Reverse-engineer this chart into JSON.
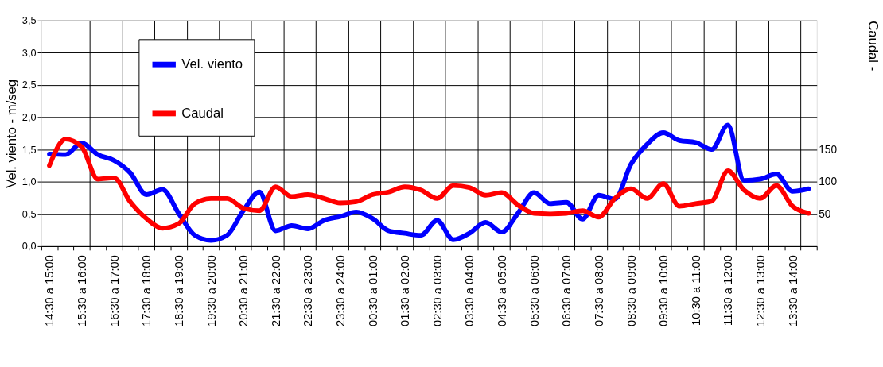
{
  "chart_data": {
    "type": "line",
    "categories": [
      "14:30 a 15:00",
      null,
      "15:30 a 16:00",
      null,
      "16:30 a 17:00",
      null,
      "17:30 a 18:00",
      null,
      "18:30 a 19:00",
      null,
      "19:30 a 20:00",
      null,
      "20:30 a 21:00",
      null,
      "21:30 a 22:00",
      null,
      "22:30 a 23:00",
      null,
      "23:30 a 24:00",
      null,
      "00:30 a 01:00",
      null,
      "01:30 a 02:00",
      null,
      "02:30 a 03:00",
      null,
      "03:30 a 04:00",
      null,
      "04:30 a 05:00",
      null,
      "05:30 a 06:00",
      null,
      "06:30 a 07:00",
      null,
      "07:30 a 08:00",
      null,
      "08:30 a 09:00",
      null,
      "09:30 a 10:00",
      null,
      "10:30 a 11:00",
      null,
      "11:30 a 12:00",
      null,
      "12:30 a 13:00",
      null,
      "13:30 a 14:00",
      null
    ],
    "series": [
      {
        "name": "Vel. viento",
        "color": "#0000ff",
        "values": [
          1.43,
          1.42,
          1.6,
          1.42,
          1.33,
          1.14,
          0.8,
          0.88,
          0.51,
          0.17,
          0.09,
          0.17,
          0.55,
          0.84,
          0.24,
          0.32,
          0.27,
          0.4,
          0.46,
          0.53,
          0.43,
          0.24,
          0.2,
          0.17,
          0.4,
          0.1,
          0.2,
          0.37,
          0.22,
          0.51,
          0.83,
          0.66,
          0.68,
          0.42,
          0.79,
          0.73,
          1.27,
          1.58,
          1.76,
          1.64,
          1.61,
          1.5,
          1.88,
          1.02,
          1.04,
          1.12,
          0.85,
          0.89
        ]
      },
      {
        "name": "Caudal",
        "color": "#ff0000",
        "axis": "y2",
        "values": [
          125,
          166,
          154,
          104,
          106,
          69,
          43,
          28,
          35,
          66,
          74,
          74,
          59,
          55,
          92,
          77,
          80,
          74,
          67,
          69,
          80,
          84,
          92,
          87,
          74,
          94,
          91,
          79,
          83,
          64,
          51,
          50,
          51,
          55,
          45,
          74,
          89,
          74,
          97,
          62,
          66,
          70,
          117,
          87,
          74,
          94,
          62,
          51
        ]
      }
    ],
    "ylabel": "Vel. viento - m/seg",
    "y2label": "Caudal -",
    "ylim": [
      0,
      3.5
    ],
    "yticks": [
      {
        "value": 0,
        "label": "0,0"
      },
      {
        "value": 0.5,
        "label": "0,5"
      },
      {
        "value": 1,
        "label": "1,0"
      },
      {
        "value": 1.5,
        "label": "1,5"
      },
      {
        "value": 2,
        "label": "2,0"
      },
      {
        "value": 2.5,
        "label": "2,5"
      },
      {
        "value": 3,
        "label": "3,0"
      },
      {
        "value": 3.5,
        "label": "3,5"
      }
    ],
    "y2lim": [
      0,
      350
    ],
    "y2ticks": [
      50,
      100,
      150
    ],
    "grid": true,
    "legend": "top left",
    "marker": "none",
    "line_style": "solid"
  }
}
